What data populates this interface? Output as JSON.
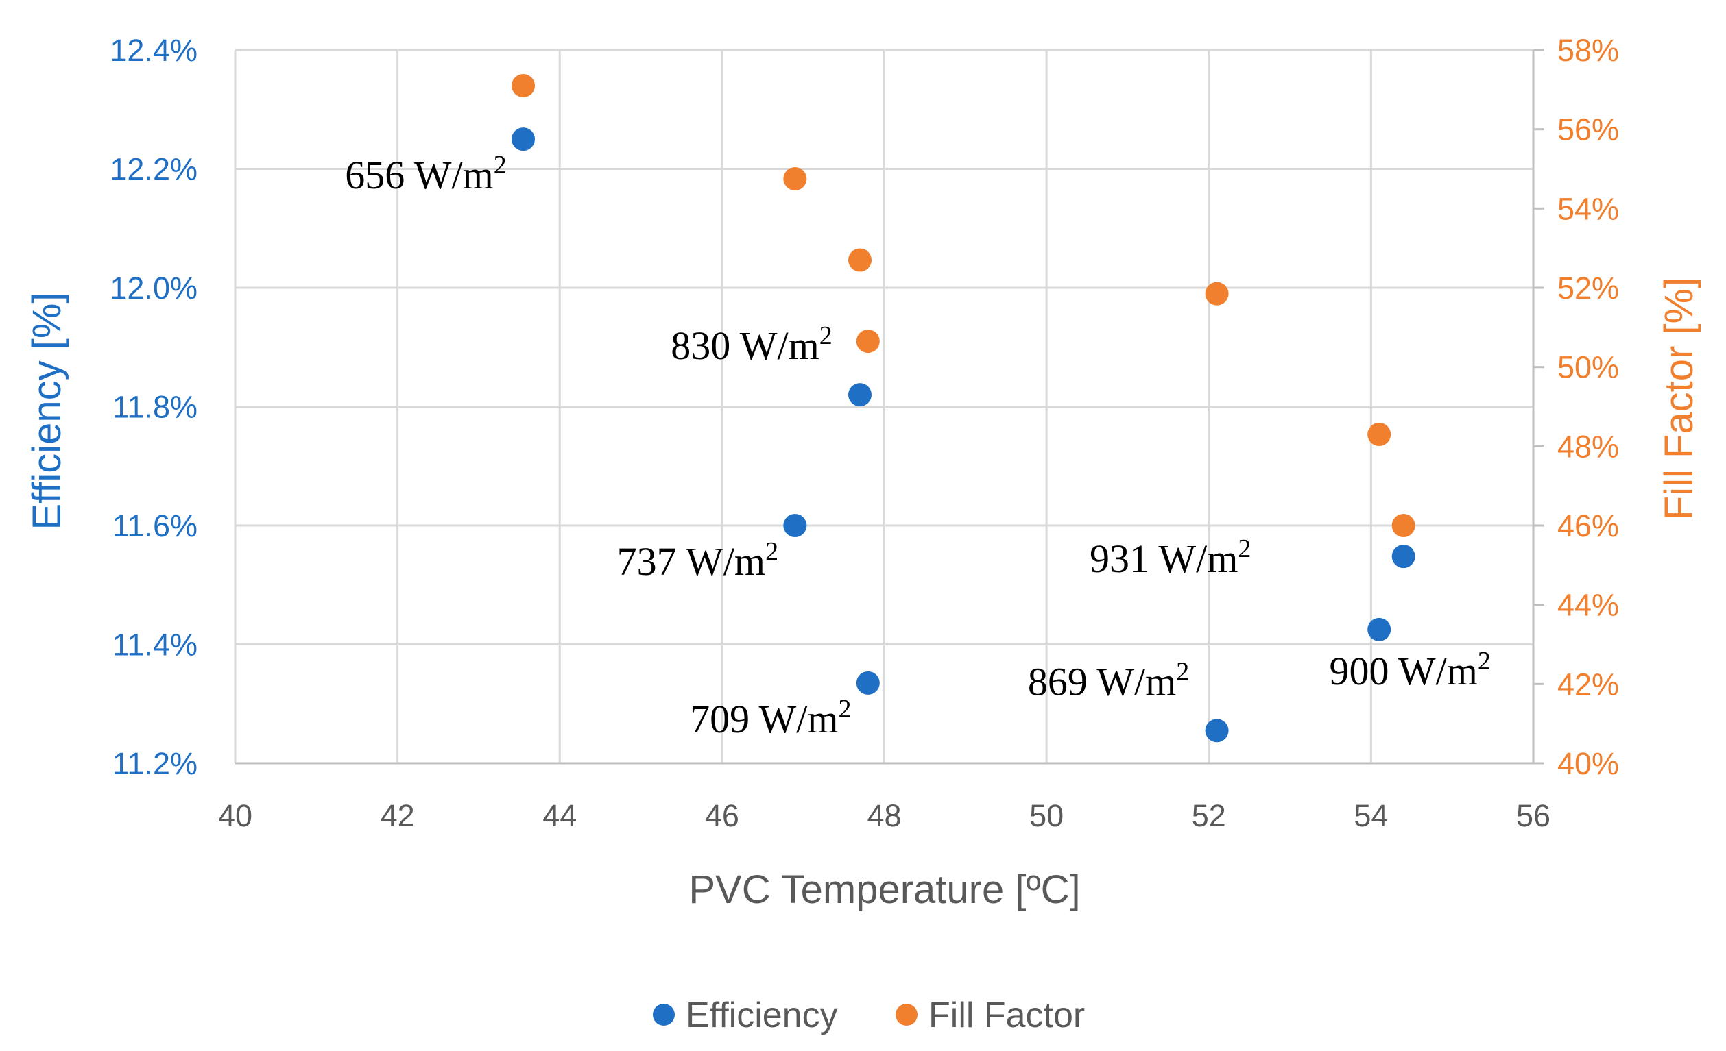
{
  "chart_data": {
    "type": "scatter",
    "xlabel": "PVC Temperature [ºC]",
    "ylabel": "Efficiency [%]",
    "y2label": "Fill Factor [%]",
    "xlim": [
      40,
      56
    ],
    "xticks": [
      40,
      42,
      44,
      46,
      48,
      50,
      52,
      54,
      56
    ],
    "ylim": [
      11.2,
      12.4
    ],
    "yticks": [
      "11.2%",
      "11.4%",
      "11.6%",
      "11.8%",
      "12.0%",
      "12.2%",
      "12.4%"
    ],
    "y2lim": [
      40,
      58
    ],
    "y2ticks": [
      "40%",
      "42%",
      "44%",
      "46%",
      "48%",
      "50%",
      "52%",
      "54%",
      "56%",
      "58%"
    ],
    "grid": true,
    "legend_position": "bottom",
    "series": [
      {
        "name": "Efficiency",
        "axis": "left",
        "color": "#1F6FC5",
        "points": [
          {
            "x": 43.55,
            "y": 12.25
          },
          {
            "x": 46.9,
            "y": 11.6
          },
          {
            "x": 47.7,
            "y": 11.82
          },
          {
            "x": 47.8,
            "y": 11.335
          },
          {
            "x": 52.1,
            "y": 11.255
          },
          {
            "x": 54.1,
            "y": 11.425
          },
          {
            "x": 54.4,
            "y": 11.548
          }
        ]
      },
      {
        "name": "Fill Factor",
        "axis": "right",
        "color": "#F07F2E",
        "points": [
          {
            "x": 43.55,
            "y": 57.1
          },
          {
            "x": 46.9,
            "y": 54.75
          },
          {
            "x": 47.7,
            "y": 52.7
          },
          {
            "x": 47.8,
            "y": 50.65
          },
          {
            "x": 52.1,
            "y": 51.85
          },
          {
            "x": 54.1,
            "y": 48.3
          },
          {
            "x": 54.4,
            "y": 46.0
          }
        ]
      }
    ],
    "annotations": [
      {
        "value": "656",
        "unit": " W/m",
        "sup": "2",
        "x": 43.55,
        "y": 12.25,
        "placement": "below-left"
      },
      {
        "value": "737",
        "unit": " W/m",
        "sup": "2",
        "x": 46.9,
        "y": 11.6,
        "placement": "below-left"
      },
      {
        "value": "830",
        "unit": " W/m",
        "sup": "2",
        "x": 47.7,
        "y": 11.82,
        "placement": "above-left"
      },
      {
        "value": "709",
        "unit": " W/m",
        "sup": "2",
        "x": 47.8,
        "y": 11.335,
        "placement": "below-left"
      },
      {
        "value": "869",
        "unit": " W/m",
        "sup": "2",
        "x": 52.1,
        "y": 11.255,
        "placement": "above-left"
      },
      {
        "value": "900",
        "unit": " W/m",
        "sup": "2",
        "x": 54.1,
        "y": 11.425,
        "placement": "below-right"
      },
      {
        "value": "931",
        "unit": " W/m",
        "sup": "2",
        "x": 54.4,
        "y": 11.548,
        "placement": "left"
      }
    ]
  },
  "colors": {
    "left_axis": "#1F6FC5",
    "right_axis": "#F07F2E",
    "x_axis": "#595959",
    "grid": "#D9D9D9"
  }
}
